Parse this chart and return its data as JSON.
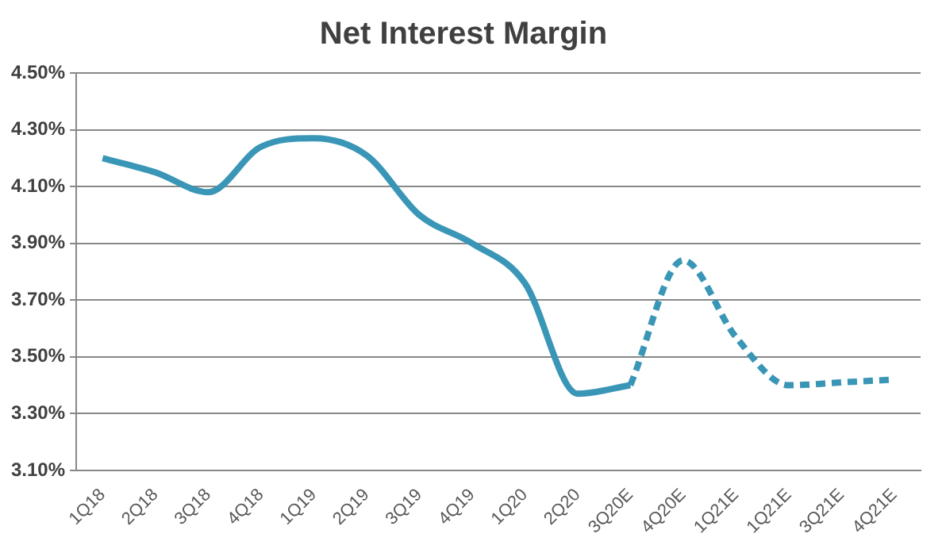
{
  "chart_data": {
    "type": "line",
    "title": "Net Interest Margin",
    "categories": [
      "1Q18",
      "2Q18",
      "3Q18",
      "4Q18",
      "1Q19",
      "2Q19",
      "3Q19",
      "4Q19",
      "1Q20",
      "2Q20",
      "3Q20E",
      "4Q20E",
      "1Q21E",
      "1Q21E",
      "3Q21E",
      "4Q21E"
    ],
    "series": [
      {
        "color": "#3a96b6",
        "line_style": "solid",
        "values": [
          4.2,
          4.15,
          4.08,
          4.24,
          4.27,
          4.21,
          4.0,
          3.9,
          3.76,
          3.37,
          3.4,
          null,
          null,
          null,
          null,
          null
        ]
      },
      {
        "color": "#3a96b6",
        "line_style": "dashed",
        "values": [
          null,
          null,
          null,
          null,
          null,
          null,
          null,
          null,
          null,
          null,
          3.4,
          3.84,
          3.57,
          3.4,
          3.41,
          3.42
        ]
      }
    ],
    "ylim": [
      3.1,
      4.5
    ],
    "yticks": [
      {
        "value": 3.1,
        "label": "3.10%"
      },
      {
        "value": 3.3,
        "label": "3.30%"
      },
      {
        "value": 3.5,
        "label": "3.50%"
      },
      {
        "value": 3.7,
        "label": "3.70%"
      },
      {
        "value": 3.9,
        "label": "3.90%"
      },
      {
        "value": 4.1,
        "label": "4.10%"
      },
      {
        "value": 4.3,
        "label": "4.30%"
      },
      {
        "value": 4.5,
        "label": "4.50%"
      }
    ],
    "grid": "y",
    "legend": false,
    "marker": "none"
  }
}
